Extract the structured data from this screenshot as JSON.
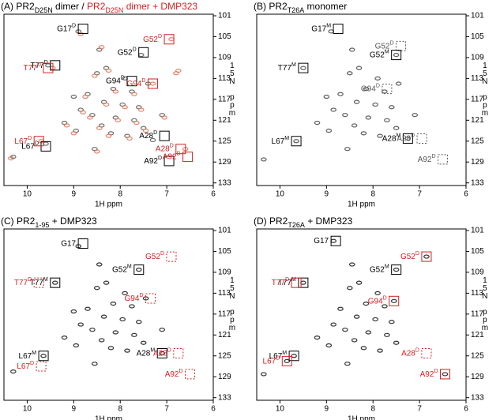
{
  "chart_data": [
    {
      "type": "scatter",
      "title": [
        {
          "text": "(A) PR2",
          "color": "#000000"
        },
        {
          "text": "D25N",
          "color": "#000000",
          "sub": true
        },
        {
          "text": " dimer / ",
          "color": "#000000"
        },
        {
          "text": "PR2",
          "color": "#d42020"
        },
        {
          "text": "D25N",
          "color": "#d42020",
          "sub": true
        },
        {
          "text": " dimer + DMP323",
          "color": "#d42020"
        }
      ],
      "x_label": "1H ppm",
      "y_label": "15N ppm",
      "xlim": [
        10.5,
        6
      ],
      "xticks": [
        10,
        9,
        8,
        7,
        6
      ],
      "ylim": [
        100.7,
        133.5
      ],
      "yticks": [
        101,
        105,
        109,
        113,
        117,
        121,
        125,
        129,
        133
      ],
      "series": [
        {
          "color": "#555555",
          "x": [
            8.9,
            8.45,
            7.55,
            9.55,
            8.3,
            8.5,
            7.9,
            7.4,
            8.15,
            7.75,
            8.7,
            8.35,
            7.95,
            7.6,
            8.85,
            8.6,
            8.1,
            7.7,
            9.2,
            8.4,
            7.5,
            8.95,
            8.2,
            7.85,
            9.6,
            7.3,
            10.3,
            8.55,
            7.1,
            9.0
          ],
          "y": [
            104,
            107.5,
            108.5,
            110.5,
            111,
            112,
            113,
            114,
            115,
            115.5,
            116,
            117.5,
            118,
            118.5,
            119,
            120,
            120.5,
            121,
            121.5,
            122,
            122.5,
            123,
            123.5,
            124,
            125.5,
            124.8,
            128,
            126.5,
            120,
            116.5
          ]
        },
        {
          "color": "#e07050",
          "x": [
            8.85,
            8.4,
            6.9,
            9.45,
            8.25,
            8.55,
            7.3,
            6.8,
            8.1,
            7.7,
            8.75,
            8.3,
            7.9,
            7.55,
            8.8,
            8.65,
            8.05,
            7.65,
            9.15,
            8.45,
            7.45,
            9.0,
            8.25,
            7.8,
            9.7,
            6.6,
            10.35,
            8.5,
            7.05,
            6.75
          ],
          "y": [
            104.5,
            107,
            105.5,
            111,
            111.5,
            112.5,
            114,
            112,
            115.5,
            116,
            116.5,
            118,
            118.5,
            119,
            119.5,
            120.5,
            121,
            121.5,
            122,
            122.5,
            123,
            123.5,
            124,
            124.5,
            125,
            126.5,
            128.3,
            127,
            120.5,
            111.5
          ]
        }
      ],
      "annotations": [
        {
          "text": "G17",
          "sup": "D",
          "x": 8.8,
          "y": 103.5,
          "color": "#000000",
          "dotted": false
        },
        {
          "text": "G52",
          "sup": "D",
          "x": 6.95,
          "y": 105.5,
          "color": "#d42020",
          "dotted": false
        },
        {
          "text": "G52",
          "sup": "D",
          "x": 7.5,
          "y": 108,
          "color": "#000000",
          "dotted": false
        },
        {
          "text": "T77",
          "sup": "D",
          "x": 9.4,
          "y": 110.5,
          "color": "#000000",
          "dotted": false
        },
        {
          "text": "T77",
          "sup": "D",
          "x": 9.55,
          "y": 111,
          "color": "#d42020",
          "dotted": false
        },
        {
          "text": "G94",
          "sup": "D",
          "x": 7.75,
          "y": 113.5,
          "color": "#000000",
          "dotted": false
        },
        {
          "text": "G94",
          "sup": "D",
          "x": 7.3,
          "y": 114,
          "color": "#d42020",
          "dotted": false
        },
        {
          "text": "A28",
          "sup": "D",
          "x": 7.05,
          "y": 124,
          "color": "#000000",
          "dotted": false
        },
        {
          "text": "A28",
          "sup": "D",
          "x": 6.7,
          "y": 126.5,
          "color": "#d42020",
          "dotted": false
        },
        {
          "text": "L67",
          "sup": "D",
          "x": 9.6,
          "y": 126,
          "color": "#000000",
          "dotted": false
        },
        {
          "text": "L67",
          "sup": "D",
          "x": 9.75,
          "y": 125,
          "color": "#d42020",
          "dotted": false
        },
        {
          "text": "A92",
          "sup": "D",
          "x": 6.95,
          "y": 128.8,
          "color": "#000000",
          "dotted": false
        },
        {
          "text": "A92",
          "sup": "D",
          "x": 6.55,
          "y": 128,
          "color": "#d42020",
          "dotted": false
        }
      ]
    },
    {
      "type": "scatter",
      "title": [
        {
          "text": "(B) PR2",
          "color": "#000000"
        },
        {
          "text": "T26A",
          "color": "#000000",
          "sub": true
        },
        {
          "text": " monomer",
          "color": "#000000"
        }
      ],
      "x_label": "1H ppm",
      "y_label": "15N ppm",
      "xlim": [
        10.5,
        6
      ],
      "xticks": [
        10,
        9,
        8,
        7,
        6
      ],
      "ylim": [
        100.7,
        133.5
      ],
      "yticks": [
        101,
        105,
        109,
        113,
        117,
        121,
        125,
        129,
        133
      ],
      "series": [
        {
          "color": "#444444",
          "x": [
            8.9,
            8.45,
            7.5,
            9.5,
            8.3,
            8.5,
            7.9,
            7.45,
            8.15,
            7.75,
            8.7,
            8.35,
            7.95,
            7.6,
            8.85,
            8.6,
            8.1,
            7.7,
            9.2,
            8.4,
            7.5,
            8.95,
            8.2,
            7.85,
            9.65,
            7.25,
            10.35,
            8.55,
            7.1,
            9.0
          ],
          "y": [
            104,
            107.5,
            108.5,
            111,
            111,
            112,
            113,
            114,
            115,
            115.5,
            116,
            117.5,
            118,
            118.5,
            119,
            120,
            120.5,
            121,
            121.5,
            122,
            122.5,
            123,
            123.5,
            124,
            125,
            124.5,
            128.5,
            126.5,
            120,
            116.5
          ]
        }
      ],
      "annotations": [
        {
          "text": "G17",
          "sup": "M",
          "x": 8.75,
          "y": 103.5,
          "color": "#000000",
          "dotted": false
        },
        {
          "text": "G52",
          "sup": "D",
          "x": 7.4,
          "y": 106.8,
          "color": "#555555",
          "dotted": true
        },
        {
          "text": "G52",
          "sup": "M",
          "x": 7.5,
          "y": 108.5,
          "color": "#000000",
          "dotted": false
        },
        {
          "text": "T77",
          "sup": "M",
          "x": 9.5,
          "y": 111,
          "color": "#000000",
          "dotted": false
        },
        {
          "text": "G94",
          "sup": "D",
          "x": 7.7,
          "y": 115,
          "color": "#555555",
          "dotted": true
        },
        {
          "text": "A28",
          "sup": "M",
          "x": 7.25,
          "y": 124.5,
          "color": "#000000",
          "dotted": false
        },
        {
          "text": "A28",
          "sup": "D",
          "x": 6.95,
          "y": 124.5,
          "color": "#555555",
          "dotted": true
        },
        {
          "text": "L67",
          "sup": "M",
          "x": 9.65,
          "y": 125,
          "color": "#000000",
          "dotted": false
        },
        {
          "text": "A92",
          "sup": "D",
          "x": 6.5,
          "y": 128.5,
          "color": "#555555",
          "dotted": true
        }
      ]
    },
    {
      "type": "scatter",
      "title": [
        {
          "text": "(C) PR2",
          "color": "#000000"
        },
        {
          "text": "1-95",
          "color": "#000000",
          "sub": true
        },
        {
          "text": " + DMP323",
          "color": "#000000"
        }
      ],
      "x_label": "1H ppm",
      "y_label": "15N ppm",
      "xlim": [
        10.5,
        6
      ],
      "xticks": [
        10,
        9,
        8,
        7,
        6
      ],
      "ylim": [
        100.7,
        133.5
      ],
      "yticks": [
        101,
        105,
        109,
        113,
        117,
        121,
        125,
        129,
        133
      ],
      "series": [
        {
          "color": "#111111",
          "x": [
            8.9,
            8.45,
            7.6,
            9.4,
            8.3,
            8.5,
            7.9,
            7.45,
            8.15,
            7.75,
            8.7,
            8.35,
            7.95,
            7.6,
            8.85,
            8.6,
            8.1,
            7.7,
            9.2,
            8.4,
            7.5,
            8.95,
            8.2,
            7.85,
            9.65,
            7.1,
            10.3,
            8.55,
            7.1,
            9.0
          ],
          "y": [
            104,
            107.5,
            108.5,
            111,
            111,
            112,
            113,
            114,
            115,
            115.5,
            116,
            117.5,
            118,
            118.5,
            119,
            120,
            120.5,
            121,
            121.5,
            122,
            122.5,
            123,
            123.5,
            124,
            125,
            124.5,
            128,
            126.5,
            120,
            116.5
          ]
        }
      ],
      "annotations": [
        {
          "text": "G17",
          "x": 8.8,
          "y": 103.5,
          "color": "#000000",
          "dotted": false
        },
        {
          "text": "G52",
          "sup": "D",
          "x": 6.9,
          "y": 106,
          "color": "#d42020",
          "dotted": true
        },
        {
          "text": "G52",
          "sup": "M",
          "x": 7.6,
          "y": 108.5,
          "color": "#000000",
          "dotted": false
        },
        {
          "text": "T77",
          "sup": "M",
          "x": 9.4,
          "y": 111,
          "color": "#000000",
          "dotted": false
        },
        {
          "text": "T77",
          "sup": "D",
          "x": 9.75,
          "y": 111,
          "color": "#d42020",
          "dotted": true
        },
        {
          "text": "G94",
          "sup": "D",
          "x": 7.35,
          "y": 114,
          "color": "#d42020",
          "dotted": true
        },
        {
          "text": "A28",
          "sup": "M",
          "x": 7.1,
          "y": 124.5,
          "color": "#000000",
          "dotted": false
        },
        {
          "text": "A28",
          "sup": "D",
          "x": 6.75,
          "y": 124.5,
          "color": "#d42020",
          "dotted": true
        },
        {
          "text": "L67",
          "sup": "M",
          "x": 9.65,
          "y": 125,
          "color": "#000000",
          "dotted": false
        },
        {
          "text": "L67",
          "sup": "D",
          "x": 9.7,
          "y": 127,
          "color": "#d42020",
          "dotted": true
        },
        {
          "text": "A92",
          "sup": "D",
          "x": 6.5,
          "y": 128.5,
          "color": "#d42020",
          "dotted": true
        }
      ]
    },
    {
      "type": "scatter",
      "title": [
        {
          "text": "(D) PR2",
          "color": "#000000"
        },
        {
          "text": "T26A",
          "color": "#000000",
          "sub": true
        },
        {
          "text": " + DMP323",
          "color": "#000000"
        }
      ],
      "x_label": "1H ppm",
      "y_label": "15N ppm",
      "xlim": [
        10.5,
        6
      ],
      "xticks": [
        10,
        9,
        8,
        7,
        6
      ],
      "ylim": [
        100.7,
        133.5
      ],
      "yticks": [
        101,
        105,
        109,
        113,
        117,
        121,
        125,
        129,
        133
      ],
      "series": [
        {
          "color": "#111111",
          "x": [
            8.85,
            8.45,
            7.5,
            9.5,
            8.3,
            8.5,
            7.9,
            7.55,
            8.15,
            7.75,
            8.7,
            8.35,
            7.95,
            7.6,
            8.85,
            8.6,
            8.1,
            7.7,
            9.2,
            8.4,
            7.5,
            8.95,
            8.2,
            7.85,
            9.7,
            6.85,
            10.35,
            8.55,
            6.45,
            9.85
          ],
          "y": [
            103,
            107.5,
            108.5,
            111,
            111,
            112,
            113,
            114.5,
            115,
            115.5,
            116,
            117.5,
            118,
            118.5,
            119,
            120,
            120.5,
            121,
            121.5,
            122,
            122.5,
            123,
            123.5,
            124,
            125,
            106,
            128.5,
            126.5,
            128.5,
            126
          ]
        }
      ],
      "annotations": [
        {
          "text": "G17",
          "x": 8.8,
          "y": 103,
          "color": "#000000",
          "dotted": false
        },
        {
          "text": "G52",
          "sup": "D",
          "x": 6.85,
          "y": 106,
          "color": "#d42020",
          "dotted": false
        },
        {
          "text": "G52",
          "sup": "M",
          "x": 7.5,
          "y": 108.5,
          "color": "#000000",
          "dotted": false
        },
        {
          "text": "T77",
          "sup": "M",
          "x": 9.5,
          "y": 111,
          "color": "#000000",
          "dotted": false
        },
        {
          "text": "T77",
          "sup": "D",
          "x": 9.65,
          "y": 111,
          "color": "#d42020",
          "dotted": false
        },
        {
          "text": "G94",
          "sup": "D",
          "x": 7.55,
          "y": 114.5,
          "color": "#d42020",
          "dotted": false
        },
        {
          "text": "A28",
          "sup": "D",
          "x": 6.85,
          "y": 124.5,
          "color": "#d42020",
          "dotted": true
        },
        {
          "text": "L67",
          "sup": "M",
          "x": 9.7,
          "y": 125,
          "color": "#000000",
          "dotted": false
        },
        {
          "text": "L67",
          "sup": "D",
          "x": 9.85,
          "y": 126,
          "color": "#d42020",
          "dotted": false
        },
        {
          "text": "A92",
          "sup": "D",
          "x": 6.45,
          "y": 128.5,
          "color": "#d42020",
          "dotted": false
        }
      ]
    }
  ]
}
